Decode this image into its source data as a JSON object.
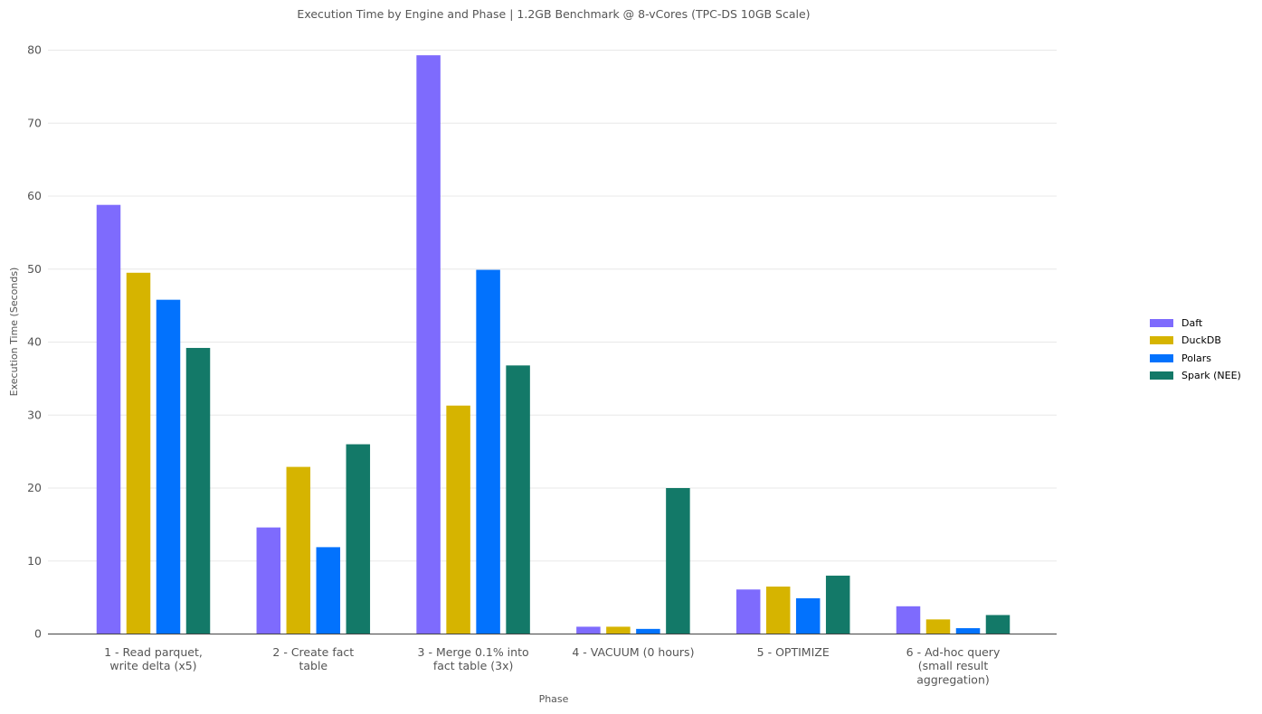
{
  "chart_data": {
    "type": "bar",
    "title": "Execution Time by Engine and Phase | 1.2GB Benchmark @ 8-vCores (TPC-DS 10GB Scale)",
    "xlabel": "Phase",
    "ylabel": "Execution Time (Seconds)",
    "ylim": [
      0,
      80
    ],
    "yticks": [
      0,
      10,
      20,
      30,
      40,
      50,
      60,
      70,
      80
    ],
    "grid": true,
    "legend_position": "right",
    "categories": [
      [
        "1 - Read parquet,",
        "write delta (x5)"
      ],
      [
        "2 - Create fact",
        "table"
      ],
      [
        "3 - Merge 0.1% into",
        "fact table (3x)"
      ],
      [
        "4 - VACUUM (0 hours)"
      ],
      [
        "5 - OPTIMIZE"
      ],
      [
        "6 - Ad-hoc query",
        "(small result",
        "aggregation)"
      ]
    ],
    "series": [
      {
        "name": "Daft",
        "color": "#7e6bfd",
        "values": [
          58.8,
          14.6,
          79.3,
          1.0,
          6.1,
          3.8
        ]
      },
      {
        "name": "DuckDB",
        "color": "#d6b400",
        "values": [
          49.5,
          22.9,
          31.3,
          1.0,
          6.5,
          2.0
        ]
      },
      {
        "name": "Polars",
        "color": "#0272fd",
        "values": [
          45.8,
          11.9,
          49.9,
          0.7,
          4.9,
          0.8
        ]
      },
      {
        "name": "Spark (NEE)",
        "color": "#137968",
        "values": [
          39.2,
          26.0,
          36.8,
          20.0,
          8.0,
          2.6
        ]
      }
    ]
  }
}
